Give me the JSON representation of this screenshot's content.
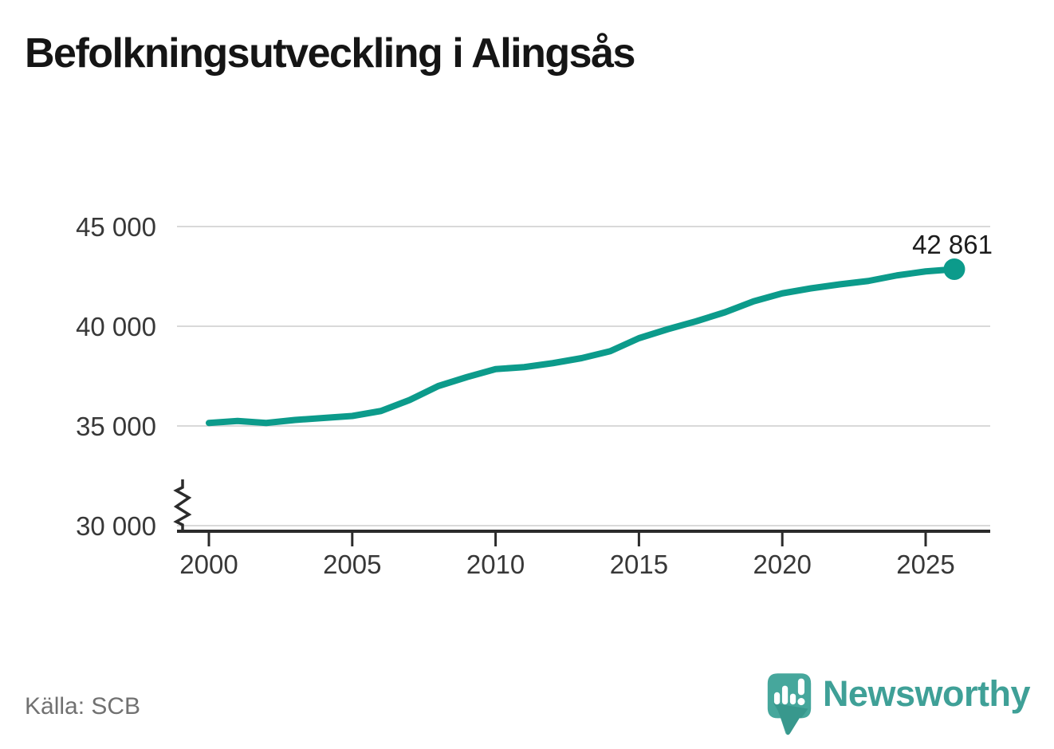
{
  "chart_data": {
    "type": "line",
    "title": "Befolkningsutveckling i Alingsås",
    "series": [
      {
        "x": [
          2000,
          2001,
          2002,
          2003,
          2004,
          2005,
          2006,
          2007,
          2008,
          2009,
          2010,
          2011,
          2012,
          2013,
          2014,
          2015,
          2016,
          2017,
          2018,
          2019,
          2020,
          2021,
          2022,
          2023,
          2024,
          2025,
          2026
        ],
        "y": [
          35150,
          35250,
          35150,
          35300,
          35400,
          35500,
          35750,
          36300,
          37000,
          37450,
          37850,
          37950,
          38150,
          38400,
          38750,
          39400,
          39850,
          40250,
          40700,
          41250,
          41650,
          41900,
          42100,
          42270,
          42550,
          42750,
          42861
        ]
      }
    ],
    "end_point": {
      "x": 2026,
      "y": 42861
    },
    "end_label": "42 861",
    "line_color": "#0c9b8b",
    "x_tick_values": [
      2000,
      2005,
      2010,
      2015,
      2020,
      2025
    ],
    "x_tick_labels": [
      "2000",
      "2005",
      "2010",
      "2015",
      "2020",
      "2025"
    ],
    "y_tick_values": [
      30000,
      35000,
      40000,
      45000
    ],
    "y_tick_labels": [
      "30 000",
      "35 000",
      "40 000",
      "45 000"
    ],
    "xlim": [
      1998.9,
      2027.3
    ],
    "ylim": [
      30000,
      45000
    ],
    "y_axis_break": true,
    "grid": "horizontal",
    "legend": "none"
  },
  "footer": {
    "source": "Källa: SCB",
    "brand": "Newsworthy"
  }
}
